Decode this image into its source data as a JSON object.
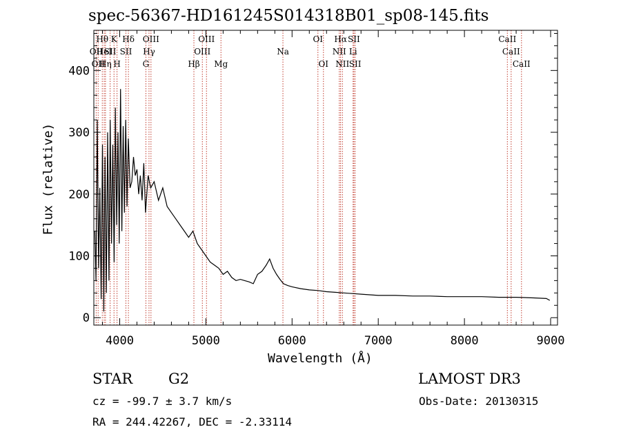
{
  "header": {
    "title": "spec-56367-HD161245S014318B01_sp08-145.fits"
  },
  "chart_data": {
    "type": "line",
    "title": "spec-56367-HD161245S014318B01_sp08-145.fits",
    "xlabel": "Wavelength (Å)",
    "ylabel": "Flux (relative)",
    "xlim": [
      3700,
      9080
    ],
    "ylim": [
      -12,
      465
    ],
    "x_ticks": [
      4000,
      5000,
      6000,
      7000,
      8000,
      9000
    ],
    "x_tick_labels": [
      "4000",
      "5000",
      "6000",
      "7000",
      "8000",
      "9000"
    ],
    "y_ticks": [
      0,
      100,
      200,
      300,
      400
    ],
    "y_tick_labels": [
      "0",
      "100",
      "200",
      "300",
      "400"
    ],
    "colors": {
      "spectrum": "#000000",
      "lines": "#c0392b"
    },
    "series": [
      {
        "name": "spectrum",
        "x": [
          3712,
          3725,
          3740,
          3755,
          3770,
          3785,
          3800,
          3815,
          3830,
          3845,
          3860,
          3875,
          3890,
          3905,
          3920,
          3935,
          3950,
          3965,
          3980,
          3995,
          4010,
          4025,
          4040,
          4055,
          4070,
          4085,
          4100,
          4120,
          4140,
          4160,
          4180,
          4200,
          4220,
          4240,
          4260,
          4280,
          4300,
          4330,
          4360,
          4400,
          4450,
          4500,
          4550,
          4600,
          4650,
          4700,
          4750,
          4800,
          4850,
          4900,
          4950,
          5000,
          5050,
          5100,
          5150,
          5200,
          5250,
          5300,
          5350,
          5400,
          5450,
          5500,
          5550,
          5600,
          5650,
          5700,
          5740,
          5780,
          5820,
          5860,
          5900,
          5950,
          6000,
          6100,
          6200,
          6300,
          6400,
          6500,
          6600,
          6700,
          6800,
          6900,
          7000,
          7200,
          7400,
          7600,
          7800,
          8000,
          8200,
          8400,
          8600,
          8800,
          8950,
          8990
        ],
        "y": [
          140,
          60,
          320,
          80,
          210,
          30,
          280,
          10,
          260,
          40,
          300,
          60,
          320,
          120,
          280,
          90,
          340,
          150,
          300,
          120,
          370,
          140,
          310,
          170,
          320,
          180,
          290,
          210,
          220,
          260,
          230,
          240,
          200,
          230,
          190,
          250,
          170,
          230,
          210,
          220,
          190,
          210,
          180,
          170,
          160,
          150,
          140,
          130,
          140,
          120,
          110,
          100,
          90,
          85,
          80,
          70,
          75,
          65,
          60,
          62,
          60,
          58,
          55,
          70,
          75,
          85,
          95,
          80,
          70,
          62,
          55,
          52,
          50,
          47,
          45,
          44,
          42,
          41,
          40,
          39,
          38,
          37,
          36,
          36,
          35,
          35,
          34,
          34,
          34,
          33,
          33,
          32,
          31,
          28
        ]
      }
    ],
    "line_labels": [
      {
        "wavelength": 3727,
        "text": "OII",
        "row": 2
      },
      {
        "wavelength": 3750,
        "text": "OII",
        "row": 3
      },
      {
        "wavelength": 3798,
        "text": "Hθ",
        "row": 1
      },
      {
        "wavelength": 3820,
        "text": "HeI",
        "row": 2
      },
      {
        "wavelength": 3835,
        "text": "Hη",
        "row": 3
      },
      {
        "wavelength": 3889,
        "text": "SII",
        "row": 2
      },
      {
        "wavelength": 3934,
        "text": "K",
        "row": 1
      },
      {
        "wavelength": 3969,
        "text": "H",
        "row": 3
      },
      {
        "wavelength": 4101,
        "text": "Hδ",
        "row": 1
      },
      {
        "wavelength": 4072,
        "text": "SII",
        "row": 2
      },
      {
        "wavelength": 4340,
        "text": "Hγ",
        "row": 2
      },
      {
        "wavelength": 4363,
        "text": "OIII",
        "row": 1
      },
      {
        "wavelength": 4304,
        "text": "G",
        "row": 3
      },
      {
        "wavelength": 4861,
        "text": "Hβ",
        "row": 3
      },
      {
        "wavelength": 4959,
        "text": "OIII",
        "row": 2
      },
      {
        "wavelength": 5007,
        "text": "OIII",
        "row": 1
      },
      {
        "wavelength": 5175,
        "text": "Mg",
        "row": 3
      },
      {
        "wavelength": 5894,
        "text": "Na",
        "row": 2
      },
      {
        "wavelength": 6300,
        "text": "OI",
        "row": 1
      },
      {
        "wavelength": 6364,
        "text": "OI",
        "row": 3
      },
      {
        "wavelength": 6563,
        "text": "Hα",
        "row": 1
      },
      {
        "wavelength": 6548,
        "text": "NII",
        "row": 2
      },
      {
        "wavelength": 6584,
        "text": "NII",
        "row": 3
      },
      {
        "wavelength": 6717,
        "text": "SII",
        "row": 1
      },
      {
        "wavelength": 6708,
        "text": "Li",
        "row": 2
      },
      {
        "wavelength": 6731,
        "text": "SII",
        "row": 3
      },
      {
        "wavelength": 8498,
        "text": "CaII",
        "row": 1
      },
      {
        "wavelength": 8542,
        "text": "CaII",
        "row": 2
      },
      {
        "wavelength": 8662,
        "text": "CaII",
        "row": 3
      }
    ]
  },
  "info": {
    "object_class": "STAR",
    "subclass": "G2",
    "cz": "cz = -99.7 ± 3.7 km/s",
    "coords": "RA = 244.42267, DEC =  -2.33114",
    "survey": "LAMOST DR3",
    "obs_date": "Obs-Date: 20130315"
  }
}
